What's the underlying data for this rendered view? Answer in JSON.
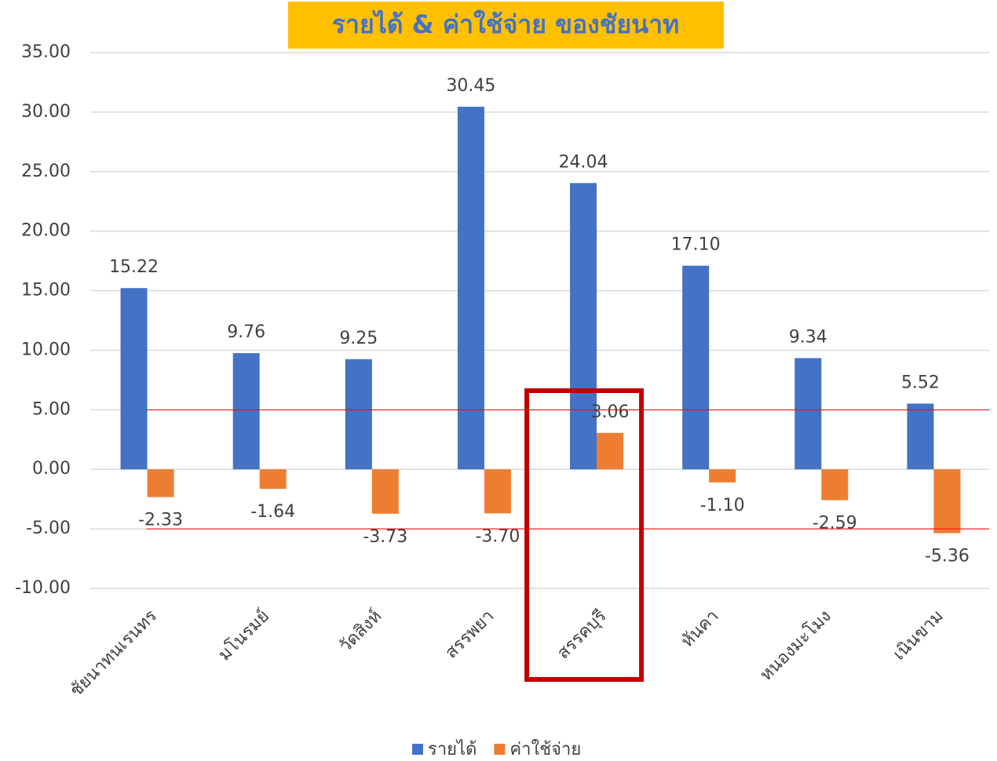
{
  "chart_data": {
    "type": "bar",
    "title": "รายได้ & ค่าใช้จ่าย ของชัยนาท",
    "categories": [
      "ชัยนาทนเรนทร",
      "มโนรมย์",
      "วัดสิงห์",
      "สรรพยา",
      "สรรคบุรี",
      "หันคา",
      "หนองมะโมง",
      "เนินขาม"
    ],
    "series": [
      {
        "name": "รายได้",
        "color": "#4472c4",
        "values": [
          15.22,
          9.76,
          9.25,
          30.45,
          24.04,
          17.1,
          9.34,
          5.52
        ],
        "value_labels": [
          "15.22",
          "9.76",
          "9.25",
          "30.45",
          "24.04",
          "17.10",
          "9.34",
          "5.52"
        ]
      },
      {
        "name": "ค่าใช้จ่าย",
        "color": "#ed7d31",
        "values": [
          -2.33,
          -1.64,
          -3.73,
          -3.7,
          3.06,
          -1.1,
          -2.59,
          -5.36
        ],
        "value_labels": [
          "-2.33",
          "-1.64",
          "-3.73",
          "-3.70",
          "3.06",
          "-1.10",
          "-2.59",
          "-5.36"
        ]
      }
    ],
    "ylim": [
      -10,
      35
    ],
    "yticks": [
      {
        "value": -10,
        "label": "-10.00"
      },
      {
        "value": -5,
        "label": "-5.00"
      },
      {
        "value": 0,
        "label": "0.00"
      },
      {
        "value": 5,
        "label": "5.00"
      },
      {
        "value": 10,
        "label": "10.00"
      },
      {
        "value": 15,
        "label": "15.00"
      },
      {
        "value": 20,
        "label": "20.00"
      },
      {
        "value": 25,
        "label": "25.00"
      },
      {
        "value": 30,
        "label": "30.00"
      },
      {
        "value": 35,
        "label": "35.00"
      }
    ],
    "grid": true,
    "reference_lines": [
      5,
      -5
    ],
    "reference_color": "#ff0000",
    "highlight_category": "สรรคบุรี",
    "highlight_color": "#c00000",
    "legend": "bottom"
  }
}
